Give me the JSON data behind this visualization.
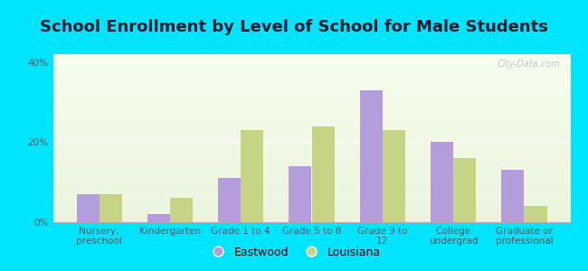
{
  "title": "School Enrollment by Level of School for Male Students",
  "categories": [
    "Nursery,\npreschool",
    "Kindergarten",
    "Grade 1 to 4",
    "Grade 5 to 8",
    "Grade 9 to\n12",
    "College\nundergrad",
    "Graduate or\nprofessional"
  ],
  "eastwood": [
    7,
    2,
    11,
    14,
    33,
    20,
    13
  ],
  "louisiana": [
    7,
    6,
    23,
    24,
    23,
    16,
    4
  ],
  "eastwood_color": "#b39ddb",
  "louisiana_color": "#c5d485",
  "title_fontsize": 13,
  "tick_fontsize": 7.5,
  "legend_fontsize": 9,
  "ylim": [
    0,
    42
  ],
  "yticks": [
    0,
    20,
    40
  ],
  "ytick_labels": [
    "0%",
    "20%",
    "40%"
  ],
  "background_color": "#00e5ff",
  "bar_width": 0.32,
  "watermark": "City-Data.com",
  "legend_label_eastwood": "Eastwood",
  "legend_label_louisiana": "Louisiana"
}
